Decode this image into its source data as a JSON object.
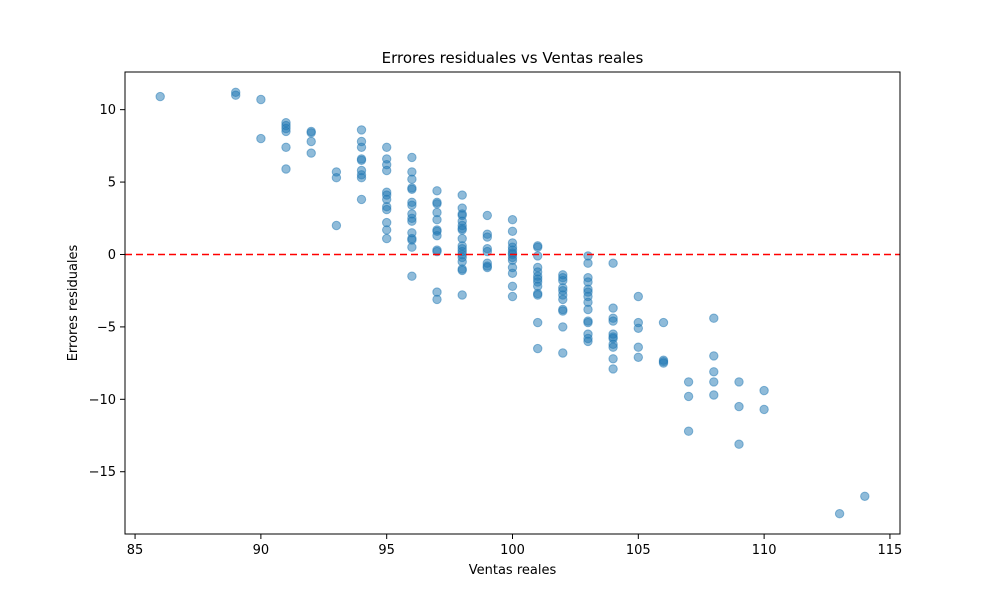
{
  "chart_data": {
    "type": "scatter",
    "title": "Errores residuales vs Ventas reales",
    "xlabel": "Ventas reales",
    "ylabel": "Errores residuales",
    "xlim": [
      84.6,
      115.4
    ],
    "ylim": [
      -19.3,
      12.6
    ],
    "xticks": [
      85,
      90,
      95,
      100,
      105,
      110,
      115
    ],
    "yticks": [
      -15,
      -10,
      -5,
      0,
      5,
      10
    ],
    "grid": false,
    "legend": "none",
    "point_color": "#1f77b4",
    "reference_line": {
      "y": 0,
      "style": "dashed",
      "color": "#ff0000"
    },
    "points": [
      [
        86,
        10.9
      ],
      [
        89,
        11.2
      ],
      [
        89,
        11.0
      ],
      [
        90,
        10.7
      ],
      [
        90,
        8.0
      ],
      [
        91,
        9.1
      ],
      [
        91,
        8.9
      ],
      [
        91,
        8.7
      ],
      [
        91,
        8.5
      ],
      [
        91,
        7.4
      ],
      [
        91,
        5.9
      ],
      [
        92,
        8.5
      ],
      [
        92,
        8.4
      ],
      [
        92,
        7.8
      ],
      [
        92,
        7.0
      ],
      [
        93,
        5.7
      ],
      [
        93,
        5.3
      ],
      [
        93,
        2.0
      ],
      [
        94,
        8.6
      ],
      [
        94,
        7.8
      ],
      [
        94,
        7.4
      ],
      [
        94,
        6.6
      ],
      [
        94,
        6.5
      ],
      [
        94,
        5.8
      ],
      [
        94,
        5.5
      ],
      [
        94,
        5.3
      ],
      [
        94,
        3.8
      ],
      [
        95,
        7.4
      ],
      [
        95,
        6.6
      ],
      [
        95,
        6.2
      ],
      [
        95,
        5.8
      ],
      [
        95,
        4.3
      ],
      [
        95,
        4.1
      ],
      [
        95,
        3.8
      ],
      [
        95,
        3.3
      ],
      [
        95,
        3.1
      ],
      [
        95,
        2.2
      ],
      [
        95,
        1.7
      ],
      [
        95,
        1.1
      ],
      [
        96,
        6.7
      ],
      [
        96,
        5.7
      ],
      [
        96,
        5.2
      ],
      [
        96,
        4.6
      ],
      [
        96,
        4.5
      ],
      [
        96,
        3.6
      ],
      [
        96,
        3.4
      ],
      [
        96,
        2.8
      ],
      [
        96,
        2.5
      ],
      [
        96,
        2.3
      ],
      [
        96,
        1.5
      ],
      [
        96,
        1.1
      ],
      [
        96,
        1.0
      ],
      [
        96,
        0.5
      ],
      [
        96,
        -1.5
      ],
      [
        97,
        4.4
      ],
      [
        97,
        3.6
      ],
      [
        97,
        3.5
      ],
      [
        97,
        2.9
      ],
      [
        97,
        2.4
      ],
      [
        97,
        1.7
      ],
      [
        97,
        1.6
      ],
      [
        97,
        1.3
      ],
      [
        97,
        0.3
      ],
      [
        97,
        0.2
      ],
      [
        97,
        -2.6
      ],
      [
        97,
        -3.1
      ],
      [
        98,
        4.1
      ],
      [
        98,
        3.2
      ],
      [
        98,
        2.8
      ],
      [
        98,
        2.7
      ],
      [
        98,
        2.3
      ],
      [
        98,
        2.0
      ],
      [
        98,
        1.8
      ],
      [
        98,
        1.7
      ],
      [
        98,
        1.1
      ],
      [
        98,
        0.6
      ],
      [
        98,
        0.4
      ],
      [
        98,
        0.2
      ],
      [
        98,
        0.0
      ],
      [
        98,
        -0.2
      ],
      [
        98,
        -0.5
      ],
      [
        98,
        -1.0
      ],
      [
        98,
        -1.1
      ],
      [
        98,
        -2.8
      ],
      [
        99,
        2.7
      ],
      [
        99,
        1.4
      ],
      [
        99,
        1.2
      ],
      [
        99,
        0.4
      ],
      [
        99,
        0.2
      ],
      [
        99,
        -0.6
      ],
      [
        99,
        -0.8
      ],
      [
        99,
        -0.9
      ],
      [
        100,
        2.4
      ],
      [
        100,
        1.6
      ],
      [
        100,
        0.8
      ],
      [
        100,
        0.5
      ],
      [
        100,
        0.3
      ],
      [
        100,
        0.1
      ],
      [
        100,
        0.0
      ],
      [
        100,
        -0.2
      ],
      [
        100,
        -0.4
      ],
      [
        100,
        -0.9
      ],
      [
        100,
        -1.3
      ],
      [
        100,
        -2.2
      ],
      [
        100,
        -2.9
      ],
      [
        101,
        0.6
      ],
      [
        101,
        0.5
      ],
      [
        101,
        -0.1
      ],
      [
        101,
        -0.9
      ],
      [
        101,
        -1.2
      ],
      [
        101,
        -1.5
      ],
      [
        101,
        -1.7
      ],
      [
        101,
        -1.9
      ],
      [
        101,
        -2.2
      ],
      [
        101,
        -2.7
      ],
      [
        101,
        -2.8
      ],
      [
        101,
        -4.7
      ],
      [
        101,
        -6.5
      ],
      [
        102,
        -1.4
      ],
      [
        102,
        -1.6
      ],
      [
        102,
        -1.8
      ],
      [
        102,
        -2.3
      ],
      [
        102,
        -2.5
      ],
      [
        102,
        -2.8
      ],
      [
        102,
        -3.1
      ],
      [
        102,
        -3.8
      ],
      [
        102,
        -3.9
      ],
      [
        102,
        -5.0
      ],
      [
        102,
        -6.8
      ],
      [
        103,
        -0.1
      ],
      [
        103,
        -0.6
      ],
      [
        103,
        -1.6
      ],
      [
        103,
        -1.9
      ],
      [
        103,
        -2.4
      ],
      [
        103,
        -2.6
      ],
      [
        103,
        -2.9
      ],
      [
        103,
        -3.3
      ],
      [
        103,
        -3.8
      ],
      [
        103,
        -4.6
      ],
      [
        103,
        -4.7
      ],
      [
        103,
        -5.5
      ],
      [
        103,
        -5.8
      ],
      [
        103,
        -6.0
      ],
      [
        104,
        -0.6
      ],
      [
        104,
        -3.7
      ],
      [
        104,
        -4.4
      ],
      [
        104,
        -4.6
      ],
      [
        104,
        -5.5
      ],
      [
        104,
        -5.7
      ],
      [
        104,
        -5.8
      ],
      [
        104,
        -6.2
      ],
      [
        104,
        -6.4
      ],
      [
        104,
        -7.2
      ],
      [
        104,
        -7.9
      ],
      [
        105,
        -2.9
      ],
      [
        105,
        -4.7
      ],
      [
        105,
        -5.1
      ],
      [
        105,
        -6.4
      ],
      [
        105,
        -7.1
      ],
      [
        106,
        -4.7
      ],
      [
        106,
        -7.3
      ],
      [
        106,
        -7.4
      ],
      [
        106,
        -7.5
      ],
      [
        107,
        -8.8
      ],
      [
        107,
        -9.8
      ],
      [
        107,
        -12.2
      ],
      [
        108,
        -4.4
      ],
      [
        108,
        -7.0
      ],
      [
        108,
        -8.1
      ],
      [
        108,
        -8.8
      ],
      [
        108,
        -9.7
      ],
      [
        109,
        -8.8
      ],
      [
        109,
        -10.5
      ],
      [
        109,
        -13.1
      ],
      [
        110,
        -9.4
      ],
      [
        110,
        -10.7
      ],
      [
        113,
        -17.9
      ],
      [
        114,
        -16.7
      ]
    ]
  }
}
